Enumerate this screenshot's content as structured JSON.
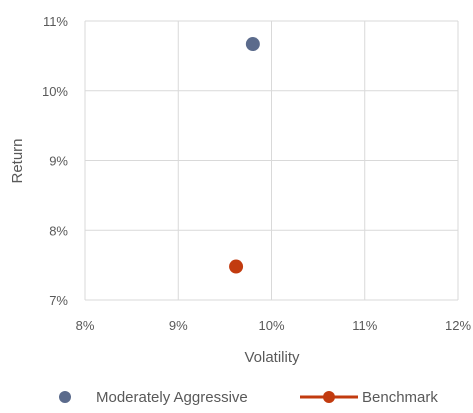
{
  "chart_data": {
    "type": "scatter",
    "xlabel": "Volatility",
    "ylabel": "Return",
    "xlim": [
      0.08,
      0.12
    ],
    "ylim": [
      0.07,
      0.11
    ],
    "xticks": [
      0.08,
      0.09,
      0.1,
      0.11,
      0.12
    ],
    "yticks": [
      0.07,
      0.08,
      0.09,
      0.1,
      0.11
    ],
    "xtick_labels": [
      "8%",
      "9%",
      "10%",
      "11%",
      "12%"
    ],
    "ytick_labels": [
      "7%",
      "8%",
      "9%",
      "10%",
      "11%"
    ],
    "grid": true,
    "legend_position": "bottom",
    "series": [
      {
        "name": "Moderately Aggressive",
        "color": "#5B6B8C",
        "marker": "circle",
        "legend_style": "marker",
        "points": [
          {
            "x": 0.098,
            "y": 0.1067
          }
        ]
      },
      {
        "name": "Benchmark",
        "color": "#C23B0F",
        "marker": "circle",
        "legend_style": "line-marker",
        "points": [
          {
            "x": 0.0962,
            "y": 0.0748
          }
        ]
      }
    ]
  }
}
